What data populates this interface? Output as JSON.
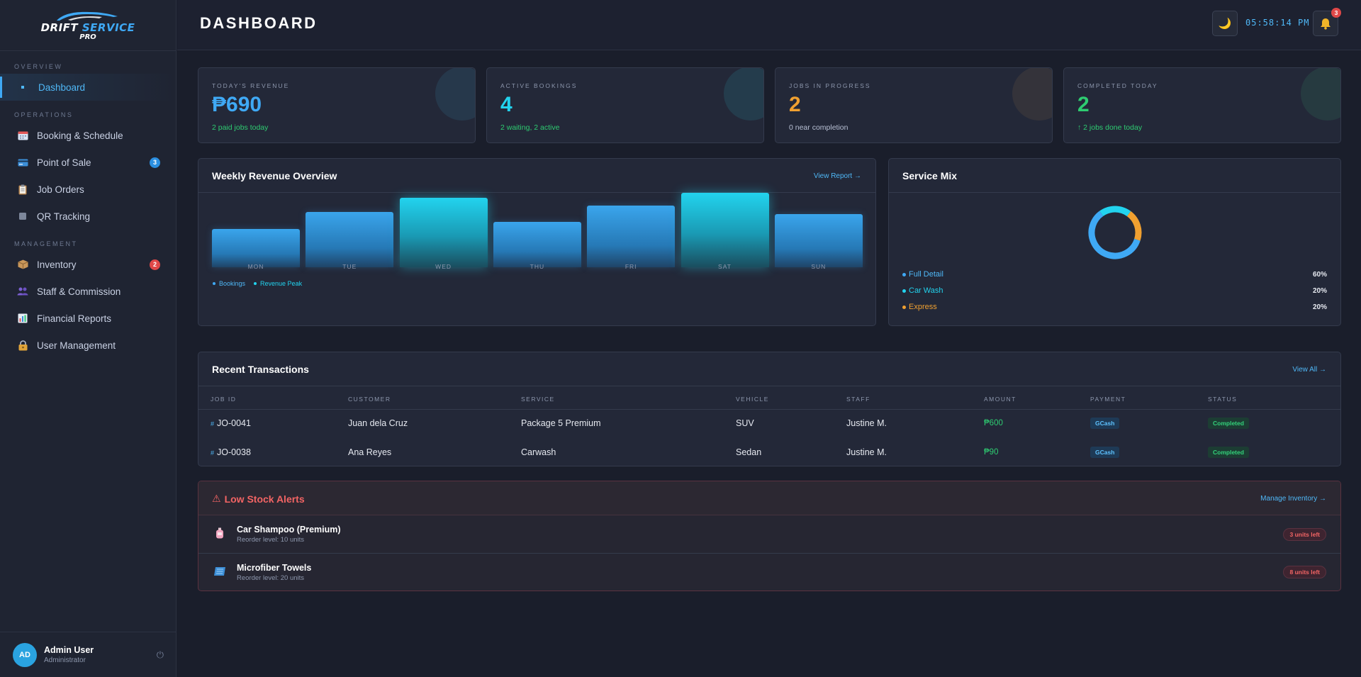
{
  "brand": {
    "name_part1": "DRIFT",
    "name_part2": "SERVICE",
    "name_sub": "PRO"
  },
  "sidebar": {
    "sections": [
      {
        "title": "OVERVIEW"
      },
      {
        "title": "OPERATIONS"
      },
      {
        "title": "MANAGEMENT"
      }
    ],
    "items": [
      {
        "label": "Dashboard",
        "icon": "dot-icon",
        "active": true
      },
      {
        "label": "Booking & Schedule",
        "icon": "calendar-icon"
      },
      {
        "label": "Point of Sale",
        "icon": "credit-card-icon",
        "badge": "3"
      },
      {
        "label": "Job Orders",
        "icon": "clipboard-icon"
      },
      {
        "label": "QR Tracking",
        "icon": "qr-icon"
      },
      {
        "label": "Inventory",
        "icon": "package-icon",
        "badge": "2"
      },
      {
        "label": "Staff & Commission",
        "icon": "people-icon"
      },
      {
        "label": "Financial Reports",
        "icon": "bar-chart-icon"
      },
      {
        "label": "User Management",
        "icon": "lock-icon"
      }
    ],
    "user": {
      "initials": "AD",
      "name": "Admin User",
      "role": "Administrator"
    }
  },
  "header": {
    "title": "DASHBOARD",
    "clock": "05:58:14 PM",
    "notification_count": "3"
  },
  "stats": [
    {
      "label": "TODAY'S REVENUE",
      "value": "₱690",
      "sub": "2 paid jobs today",
      "color": "#3fa9f5",
      "sub_color": "#2ecc71"
    },
    {
      "label": "ACTIVE BOOKINGS",
      "value": "4",
      "sub": "2 waiting, 2 active",
      "color": "#22d3ee",
      "sub_color": "#2ecc71"
    },
    {
      "label": "JOBS IN PROGRESS",
      "value": "2",
      "sub": "0 near completion",
      "color": "#f0a030",
      "sub_color": "#b8c0d4"
    },
    {
      "label": "COMPLETED TODAY",
      "value": "2",
      "sub": "↑ 2 jobs done today",
      "color": "#2ecc71",
      "sub_color": "#2ecc71"
    }
  ],
  "weekly": {
    "title": "Weekly Revenue Overview",
    "link": "View Report →",
    "legend": [
      "Bookings",
      "Revenue Peak"
    ]
  },
  "chart_data": {
    "type": "bar",
    "categories": [
      "MON",
      "TUE",
      "WED",
      "THU",
      "FRI",
      "SAT",
      "SUN"
    ],
    "values": [
      54,
      78,
      98,
      64,
      87,
      105,
      75
    ],
    "peak": [
      false,
      false,
      true,
      false,
      false,
      true,
      false
    ],
    "title": "Weekly Revenue Overview",
    "ylim": [
      0,
      105
    ]
  },
  "service_mix": {
    "title": "Service Mix",
    "items": [
      {
        "name": "Full Detail",
        "pct": "60%",
        "value": 60,
        "color": "#3fa9f5"
      },
      {
        "name": "Car Wash",
        "pct": "20%",
        "value": 20,
        "color": "#22d3ee"
      },
      {
        "name": "Express",
        "pct": "20%",
        "value": 20,
        "color": "#f0a030"
      }
    ]
  },
  "transactions": {
    "title": "Recent Transactions",
    "link": "View All →",
    "columns": [
      "JOB ID",
      "CUSTOMER",
      "SERVICE",
      "VEHICLE",
      "STAFF",
      "AMOUNT",
      "PAYMENT",
      "STATUS"
    ],
    "rows": [
      {
        "job_id": "JO-0041",
        "customer": "Juan dela Cruz",
        "service": "Package 5 Premium",
        "vehicle": "SUV",
        "staff": "Justine M.",
        "amount": "₱600",
        "payment": "GCash",
        "status": "Completed"
      },
      {
        "job_id": "JO-0038",
        "customer": "Ana Reyes",
        "service": "Carwash",
        "vehicle": "Sedan",
        "staff": "Justine M.",
        "amount": "₱90",
        "payment": "GCash",
        "status": "Completed"
      }
    ]
  },
  "low_stock": {
    "title": "Low Stock Alerts",
    "link": "Manage Inventory →",
    "items": [
      {
        "name": "Car Shampoo (Premium)",
        "reorder": "Reorder level: 10 units",
        "left": "3 units left",
        "icon": "bottle-icon"
      },
      {
        "name": "Microfiber Towels",
        "reorder": "Reorder level: 20 units",
        "left": "8 units left",
        "icon": "towel-icon"
      }
    ]
  }
}
